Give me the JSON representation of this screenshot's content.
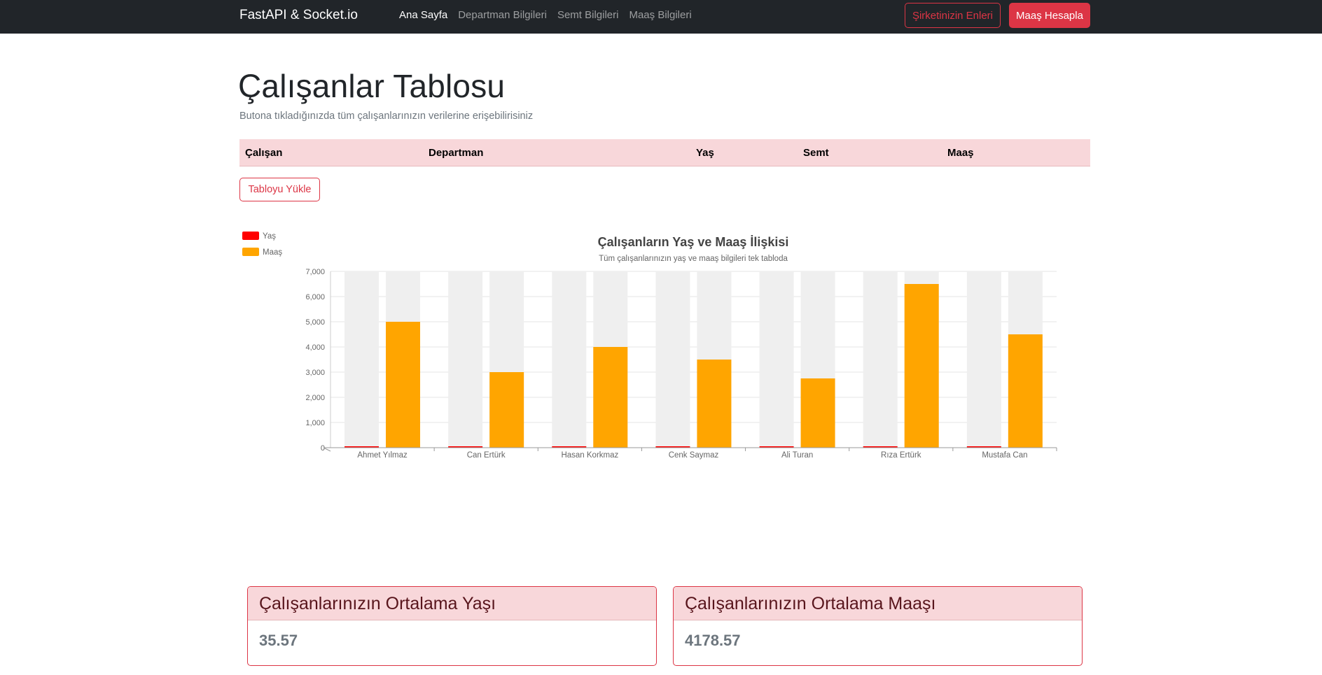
{
  "navbar": {
    "brand": "FastAPI & Socket.io",
    "links": [
      "Ana Sayfa",
      "Departman Bilgileri",
      "Semt Bilgileri",
      "Maaş Bilgileri"
    ],
    "btn_outline": "Şirketinizin Enleri",
    "btn_primary": "Maaş Hesapla"
  },
  "main": {
    "title": "Çalışanlar Tablosu",
    "lead": "Butona tıkladığınızda tüm çalışanlarınızın verilerine erişebilirisiniz",
    "table_headers": [
      "Çalışan",
      "Departman",
      "Yaş",
      "Semt",
      "Maaş"
    ],
    "load_button": "Tabloyu Yükle"
  },
  "chart_data": {
    "type": "bar",
    "title": "Çalışanların Yaş ve Maaş İlişkisi",
    "subtitle": "Tüm çalışanlarınızın yaş ve maaş bilgileri tek tabloda",
    "categories": [
      "Ahmet Yılmaz",
      "Can Ertürk",
      "Hasan Korkmaz",
      "Cenk Saymaz",
      "Ali Turan",
      "Rıza Ertürk",
      "Mustafa Can"
    ],
    "series": [
      {
        "name": "Yaş",
        "color": "#ff0000",
        "values": [
          32,
          28,
          42,
          45,
          30,
          35,
          37
        ]
      },
      {
        "name": "Maaş",
        "color": "#ffa500",
        "values": [
          5000,
          3000,
          4000,
          3500,
          2750,
          6500,
          4500
        ]
      }
    ],
    "ylim": [
      0,
      7000
    ],
    "yticks": [
      0,
      1000,
      2000,
      3000,
      4000,
      5000,
      6000,
      7000
    ],
    "ytick_labels": [
      "0",
      "1,000",
      "2,000",
      "3,000",
      "4,000",
      "5,000",
      "6,000",
      "7,000"
    ],
    "legend": "top-left",
    "grid": true,
    "bar_background": "#efefef"
  },
  "cards": [
    {
      "header": "Çalışanlarınızın Ortalama Yaşı",
      "value": "35.57"
    },
    {
      "header": "Çalışanlarınızın Ortalama Maaşı",
      "value": "4178.57"
    }
  ]
}
